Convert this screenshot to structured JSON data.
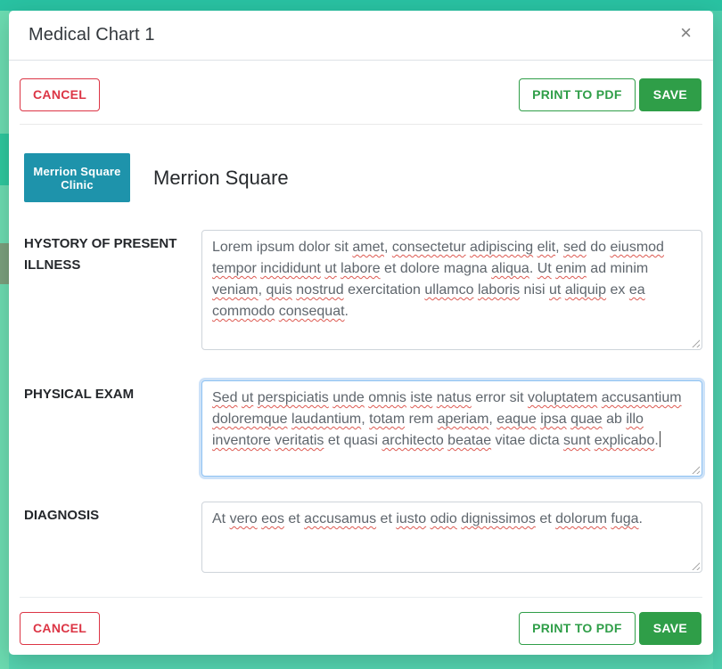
{
  "modal": {
    "title": "Medical Chart 1",
    "close_icon": "×",
    "buttons": {
      "cancel": "CANCEL",
      "print": "PRINT TO PDF",
      "save": "SAVE"
    },
    "clinic": {
      "logo_line1": "Merrion Square",
      "logo_line2": "Clinic",
      "name": "Merrion Square"
    },
    "fields": [
      {
        "label": "HYSTORY OF PRESENT ILLNESS",
        "focused": false,
        "caret": false,
        "tokens": [
          {
            "t": "Lorem ipsum dolor sit ",
            "s": false
          },
          {
            "t": "amet",
            "s": true
          },
          {
            "t": ", ",
            "s": false
          },
          {
            "t": "consectetur",
            "s": true
          },
          {
            "t": " ",
            "s": false
          },
          {
            "t": "adipiscing",
            "s": true
          },
          {
            "t": " ",
            "s": false
          },
          {
            "t": "elit",
            "s": true
          },
          {
            "t": ", ",
            "s": false
          },
          {
            "t": "sed",
            "s": true
          },
          {
            "t": " do ",
            "s": false
          },
          {
            "t": "eiusmod",
            "s": true
          },
          {
            "t": " ",
            "s": false
          },
          {
            "t": "tempor",
            "s": true
          },
          {
            "t": " ",
            "s": false
          },
          {
            "t": "incididunt",
            "s": true
          },
          {
            "t": " ",
            "s": false
          },
          {
            "t": "ut",
            "s": true
          },
          {
            "t": " ",
            "s": false
          },
          {
            "t": "labore",
            "s": true
          },
          {
            "t": " et dolore magna ",
            "s": false
          },
          {
            "t": "aliqua",
            "s": true
          },
          {
            "t": ". ",
            "s": false
          },
          {
            "t": "Ut",
            "s": true
          },
          {
            "t": " ",
            "s": false
          },
          {
            "t": "enim",
            "s": true
          },
          {
            "t": " ad minim ",
            "s": false
          },
          {
            "t": "veniam",
            "s": true
          },
          {
            "t": ", ",
            "s": false
          },
          {
            "t": "quis",
            "s": true
          },
          {
            "t": " ",
            "s": false
          },
          {
            "t": "nostrud",
            "s": true
          },
          {
            "t": " exercitation ",
            "s": false
          },
          {
            "t": "ullamco",
            "s": true
          },
          {
            "t": " ",
            "s": false
          },
          {
            "t": "laboris",
            "s": true
          },
          {
            "t": " nisi ",
            "s": false
          },
          {
            "t": "ut",
            "s": true
          },
          {
            "t": " ",
            "s": false
          },
          {
            "t": "aliquip",
            "s": true
          },
          {
            "t": " ex ",
            "s": false
          },
          {
            "t": "ea",
            "s": true
          },
          {
            "t": " ",
            "s": false
          },
          {
            "t": "commodo",
            "s": true
          },
          {
            "t": " ",
            "s": false
          },
          {
            "t": "consequat",
            "s": true
          },
          {
            "t": ".",
            "s": false
          }
        ]
      },
      {
        "label": "PHYSICAL EXAM",
        "focused": true,
        "caret": true,
        "tokens": [
          {
            "t": "Sed",
            "s": true
          },
          {
            "t": " ",
            "s": false
          },
          {
            "t": "ut",
            "s": true
          },
          {
            "t": " ",
            "s": false
          },
          {
            "t": "perspiciatis",
            "s": true
          },
          {
            "t": " ",
            "s": false
          },
          {
            "t": "unde",
            "s": true
          },
          {
            "t": " ",
            "s": false
          },
          {
            "t": "omnis",
            "s": true
          },
          {
            "t": " ",
            "s": false
          },
          {
            "t": "iste",
            "s": true
          },
          {
            "t": " ",
            "s": false
          },
          {
            "t": "natus",
            "s": true
          },
          {
            "t": " error sit ",
            "s": false
          },
          {
            "t": "voluptatem",
            "s": true
          },
          {
            "t": " ",
            "s": false
          },
          {
            "t": "accusantium",
            "s": true
          },
          {
            "t": " ",
            "s": false
          },
          {
            "t": "doloremque",
            "s": true
          },
          {
            "t": " ",
            "s": false
          },
          {
            "t": "laudantium",
            "s": true
          },
          {
            "t": ", ",
            "s": false
          },
          {
            "t": "totam",
            "s": true
          },
          {
            "t": " rem ",
            "s": false
          },
          {
            "t": "aperiam",
            "s": true
          },
          {
            "t": ", ",
            "s": false
          },
          {
            "t": "eaque",
            "s": true
          },
          {
            "t": " ",
            "s": false
          },
          {
            "t": "ipsa",
            "s": true
          },
          {
            "t": " ",
            "s": false
          },
          {
            "t": "quae",
            "s": true
          },
          {
            "t": " ab ",
            "s": false
          },
          {
            "t": "illo",
            "s": true
          },
          {
            "t": " ",
            "s": false
          },
          {
            "t": "inventore",
            "s": true
          },
          {
            "t": " ",
            "s": false
          },
          {
            "t": "veritatis",
            "s": true
          },
          {
            "t": " et quasi ",
            "s": false
          },
          {
            "t": "architecto",
            "s": true
          },
          {
            "t": " ",
            "s": false
          },
          {
            "t": "beatae",
            "s": true
          },
          {
            "t": " vitae dicta ",
            "s": false
          },
          {
            "t": "sunt",
            "s": true
          },
          {
            "t": " ",
            "s": false
          },
          {
            "t": "explicabo",
            "s": true
          },
          {
            "t": ".",
            "s": false
          }
        ]
      },
      {
        "label": "DIAGNOSIS",
        "focused": false,
        "caret": false,
        "tokens": [
          {
            "t": "At ",
            "s": false
          },
          {
            "t": "vero",
            "s": true
          },
          {
            "t": " ",
            "s": false
          },
          {
            "t": "eos",
            "s": true
          },
          {
            "t": " et ",
            "s": false
          },
          {
            "t": "accusamus",
            "s": true
          },
          {
            "t": " et ",
            "s": false
          },
          {
            "t": "iusto",
            "s": true
          },
          {
            "t": " ",
            "s": false
          },
          {
            "t": "odio",
            "s": true
          },
          {
            "t": " ",
            "s": false
          },
          {
            "t": "dignissimos",
            "s": true
          },
          {
            "t": " et ",
            "s": false
          },
          {
            "t": "dolorum",
            "s": true
          },
          {
            "t": " ",
            "s": false
          },
          {
            "t": "fuga",
            "s": true
          },
          {
            "t": ".",
            "s": false
          }
        ]
      }
    ],
    "colors": {
      "save_green": "#2f9e48",
      "cancel_red": "#dc3545",
      "logo_teal": "#1e93ab",
      "focus_blue": "#8ec2f2",
      "squiggle_red": "#dd5a52",
      "backdrop_teal": "#5bd5ae"
    }
  }
}
